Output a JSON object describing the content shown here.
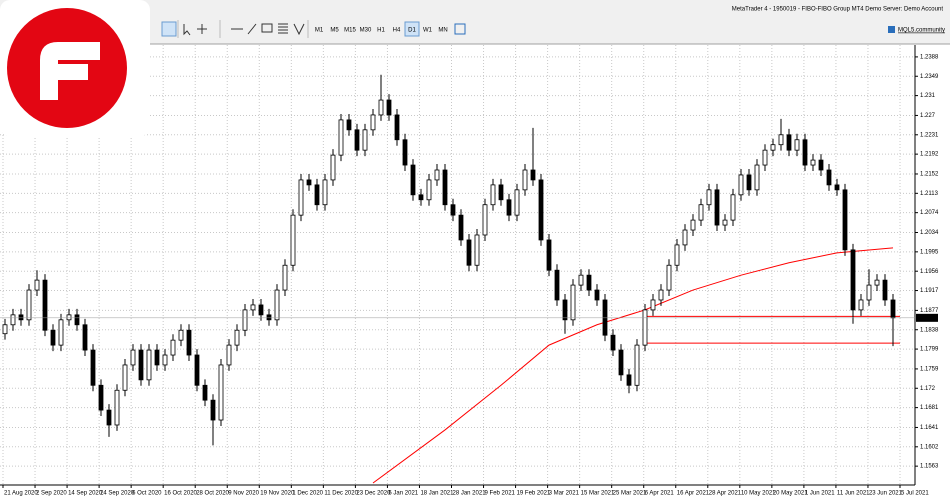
{
  "window_title": "MetaTrader 4 - 1950019 - FIBO-FIBO Group MT4 Demo Server: Demo Account",
  "community_link": "MQL5.community",
  "timeframes": [
    "M1",
    "M5",
    "M15",
    "M30",
    "H1",
    "H4",
    "D1",
    "W1",
    "MN"
  ],
  "active_timeframe": "D1",
  "chart_data": {
    "type": "candlestick",
    "ylim": [
      1.1525,
      1.2412
    ],
    "yticks": [
      1.2388,
      1.2349,
      1.231,
      1.227,
      1.2231,
      1.2192,
      1.2152,
      1.2113,
      1.2074,
      1.2034,
      1.1995,
      1.1956,
      1.1917,
      1.1877,
      1.1838,
      1.1799,
      1.1759,
      1.172,
      1.1681,
      1.1641,
      1.1602,
      1.1563
    ],
    "grid": true,
    "current_price": 1.1862,
    "hlines": [
      1.1865,
      1.1811
    ],
    "dates": [
      "21 Aug 2020",
      "2 Sep 2020",
      "14 Sep 2020",
      "24 Sep 2020",
      "6 Oct 2020",
      "16 Oct 2020",
      "28 Oct 2020",
      "9 Nov 2020",
      "19 Nov 2020",
      "1 Dec 2020",
      "11 Dec 2020",
      "23 Dec 2020",
      "6 Jan 2021",
      "18 Jan 2021",
      "28 Jan 2021",
      "9 Feb 2021",
      "19 Feb 2021",
      "3 Mar 2021",
      "15 Mar 2021",
      "25 Mar 2021",
      "6 Apr 2021",
      "16 Apr 2021",
      "28 Apr 2021",
      "10 May 2021",
      "20 May 2021",
      "1 Jun 2021",
      "11 Jun 2021",
      "23 Jun 2021",
      "5 Jul 2021"
    ],
    "candles": [
      [
        1.183,
        1.186,
        1.1818,
        1.1848
      ],
      [
        1.1848,
        1.188,
        1.1836,
        1.1868
      ],
      [
        1.1868,
        1.188,
        1.1846,
        1.1858
      ],
      [
        1.1858,
        1.193,
        1.1846,
        1.1918
      ],
      [
        1.1918,
        1.1958,
        1.1906,
        1.1938
      ],
      [
        1.1938,
        1.195,
        1.1825,
        1.1837
      ],
      [
        1.1837,
        1.1849,
        1.1795,
        1.1807
      ],
      [
        1.1807,
        1.187,
        1.1795,
        1.1858
      ],
      [
        1.1858,
        1.188,
        1.1846,
        1.1868
      ],
      [
        1.1868,
        1.188,
        1.1836,
        1.1848
      ],
      [
        1.1848,
        1.186,
        1.1785,
        1.1797
      ],
      [
        1.1797,
        1.1809,
        1.1714,
        1.1726
      ],
      [
        1.1726,
        1.1738,
        1.1664,
        1.1676
      ],
      [
        1.1676,
        1.1688,
        1.1622,
        1.1646
      ],
      [
        1.1646,
        1.1728,
        1.1634,
        1.1716
      ],
      [
        1.1716,
        1.1779,
        1.1704,
        1.1767
      ],
      [
        1.1767,
        1.1809,
        1.1755,
        1.1797
      ],
      [
        1.1797,
        1.1809,
        1.1725,
        1.1737
      ],
      [
        1.1737,
        1.1809,
        1.1725,
        1.1797
      ],
      [
        1.1797,
        1.1809,
        1.1755,
        1.1767
      ],
      [
        1.1767,
        1.1799,
        1.1755,
        1.1787
      ],
      [
        1.1787,
        1.1829,
        1.1775,
        1.1817
      ],
      [
        1.1817,
        1.1849,
        1.1805,
        1.1837
      ],
      [
        1.1837,
        1.1849,
        1.1775,
        1.1787
      ],
      [
        1.1787,
        1.1799,
        1.1714,
        1.1726
      ],
      [
        1.1726,
        1.1738,
        1.1684,
        1.1696
      ],
      [
        1.1696,
        1.1708,
        1.1605,
        1.1656
      ],
      [
        1.1656,
        1.1779,
        1.1644,
        1.1767
      ],
      [
        1.1767,
        1.1819,
        1.1755,
        1.1807
      ],
      [
        1.1807,
        1.1849,
        1.1795,
        1.1837
      ],
      [
        1.1837,
        1.189,
        1.1825,
        1.1878
      ],
      [
        1.1878,
        1.19,
        1.1866,
        1.1888
      ],
      [
        1.1888,
        1.19,
        1.1856,
        1.1868
      ],
      [
        1.1868,
        1.188,
        1.1846,
        1.1858
      ],
      [
        1.1858,
        1.193,
        1.1846,
        1.1918
      ],
      [
        1.1918,
        1.198,
        1.1906,
        1.1968
      ],
      [
        1.1968,
        1.2081,
        1.1956,
        1.2069
      ],
      [
        1.2069,
        1.2152,
        1.2057,
        1.214
      ],
      [
        1.214,
        1.2152,
        1.2118,
        1.213
      ],
      [
        1.213,
        1.2142,
        1.2078,
        1.209
      ],
      [
        1.209,
        1.2152,
        1.2078,
        1.214
      ],
      [
        1.214,
        1.2202,
        1.2128,
        1.219
      ],
      [
        1.219,
        1.2273,
        1.2178,
        1.2261
      ],
      [
        1.2261,
        1.2273,
        1.2229,
        1.2241
      ],
      [
        1.2241,
        1.2253,
        1.2188,
        1.22
      ],
      [
        1.22,
        1.2253,
        1.2188,
        1.2241
      ],
      [
        1.2241,
        1.2283,
        1.2229,
        1.2271
      ],
      [
        1.2271,
        1.2352,
        1.2259,
        1.2301
      ],
      [
        1.2301,
        1.2313,
        1.2259,
        1.2271
      ],
      [
        1.2271,
        1.2283,
        1.2209,
        1.2221
      ],
      [
        1.2221,
        1.2233,
        1.2158,
        1.217
      ],
      [
        1.217,
        1.2182,
        1.2098,
        1.211
      ],
      [
        1.211,
        1.2122,
        1.2088,
        1.21
      ],
      [
        1.21,
        1.2152,
        1.2088,
        1.214
      ],
      [
        1.214,
        1.2172,
        1.2128,
        1.216
      ],
      [
        1.216,
        1.2172,
        1.2078,
        1.209
      ],
      [
        1.209,
        1.2102,
        1.2057,
        1.2069
      ],
      [
        1.2069,
        1.2081,
        1.2007,
        1.2019
      ],
      [
        1.2019,
        1.2031,
        1.1956,
        1.1968
      ],
      [
        1.1968,
        1.2041,
        1.1956,
        1.2029
      ],
      [
        1.2029,
        1.2102,
        1.2017,
        1.209
      ],
      [
        1.209,
        1.2142,
        1.2078,
        1.213
      ],
      [
        1.213,
        1.2142,
        1.2088,
        1.21
      ],
      [
        1.21,
        1.2112,
        1.2057,
        1.2069
      ],
      [
        1.2069,
        1.2132,
        1.2057,
        1.212
      ],
      [
        1.212,
        1.2172,
        1.2108,
        1.216
      ],
      [
        1.216,
        1.2245,
        1.2128,
        1.214
      ],
      [
        1.214,
        1.2152,
        1.2007,
        1.2019
      ],
      [
        1.2019,
        1.2031,
        1.1946,
        1.1958
      ],
      [
        1.1958,
        1.197,
        1.1886,
        1.1898
      ],
      [
        1.1898,
        1.191,
        1.183,
        1.1858
      ],
      [
        1.1858,
        1.194,
        1.1846,
        1.1928
      ],
      [
        1.1928,
        1.196,
        1.1916,
        1.1948
      ],
      [
        1.1948,
        1.196,
        1.1906,
        1.1918
      ],
      [
        1.1918,
        1.193,
        1.1886,
        1.1898
      ],
      [
        1.1898,
        1.191,
        1.1815,
        1.1827
      ],
      [
        1.1827,
        1.1839,
        1.1785,
        1.1797
      ],
      [
        1.1797,
        1.1809,
        1.1735,
        1.1747
      ],
      [
        1.1747,
        1.1759,
        1.171,
        1.1726
      ],
      [
        1.1726,
        1.1819,
        1.1714,
        1.1807
      ],
      [
        1.1807,
        1.189,
        1.1795,
        1.1878
      ],
      [
        1.1878,
        1.191,
        1.1866,
        1.1898
      ],
      [
        1.1898,
        1.193,
        1.1886,
        1.1918
      ],
      [
        1.1918,
        1.198,
        1.1906,
        1.1968
      ],
      [
        1.1968,
        1.2021,
        1.1956,
        1.2009
      ],
      [
        1.2009,
        1.2051,
        1.1997,
        1.2039
      ],
      [
        1.2039,
        1.2071,
        1.2027,
        1.2059
      ],
      [
        1.2059,
        1.2102,
        1.2047,
        1.209
      ],
      [
        1.209,
        1.2132,
        1.2078,
        1.212
      ],
      [
        1.212,
        1.2132,
        1.2037,
        1.2049
      ],
      [
        1.2049,
        1.2071,
        1.2037,
        1.2059
      ],
      [
        1.2059,
        1.2122,
        1.2047,
        1.211
      ],
      [
        1.211,
        1.2162,
        1.2098,
        1.215
      ],
      [
        1.215,
        1.2162,
        1.2108,
        1.212
      ],
      [
        1.212,
        1.2182,
        1.2108,
        1.217
      ],
      [
        1.217,
        1.2212,
        1.2158,
        1.22
      ],
      [
        1.22,
        1.2223,
        1.2188,
        1.2211
      ],
      [
        1.2211,
        1.2263,
        1.2199,
        1.2231
      ],
      [
        1.2231,
        1.2243,
        1.2188,
        1.22
      ],
      [
        1.22,
        1.2233,
        1.2188,
        1.2221
      ],
      [
        1.2221,
        1.2233,
        1.2158,
        1.217
      ],
      [
        1.217,
        1.2192,
        1.2158,
        1.218
      ],
      [
        1.218,
        1.2192,
        1.2148,
        1.216
      ],
      [
        1.216,
        1.2172,
        1.2118,
        1.213
      ],
      [
        1.213,
        1.2142,
        1.2108,
        1.212
      ],
      [
        1.212,
        1.2132,
        1.1987,
        1.1999
      ],
      [
        1.1999,
        1.2011,
        1.185,
        1.1878
      ],
      [
        1.1878,
        1.191,
        1.1866,
        1.1898
      ],
      [
        1.1898,
        1.196,
        1.1886,
        1.1928
      ],
      [
        1.1928,
        1.195,
        1.1916,
        1.1938
      ],
      [
        1.1938,
        1.195,
        1.1886,
        1.1898
      ],
      [
        1.1898,
        1.191,
        1.1805,
        1.1862
      ]
    ],
    "ma": {
      "color": "#ff0000",
      "x": [
        46,
        55,
        62,
        68,
        74,
        80,
        86,
        92,
        98,
        104,
        111
      ],
      "values": [
        1.1529,
        1.1636,
        1.1726,
        1.1807,
        1.1848,
        1.1878,
        1.1918,
        1.1948,
        1.1973,
        1.1993,
        1.2003
      ]
    }
  }
}
